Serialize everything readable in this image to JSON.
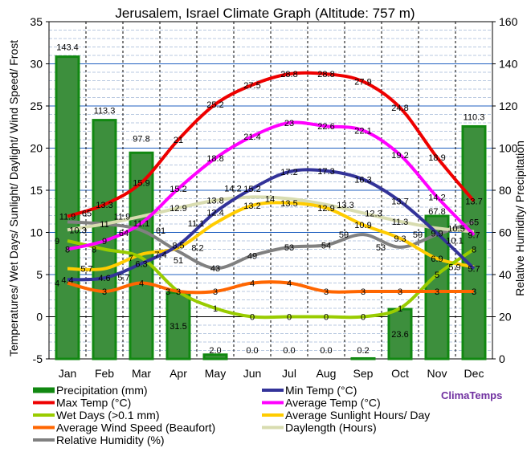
{
  "chart_data": {
    "type": "bar+line",
    "title": "Jerusalem, Israel Climate Graph (Altitude: 757 m)",
    "ylabel_left": "Temperatures/ Wet Days/ Sunlight/ Daylight/ Wind Speed/ Frost",
    "ylabel_right": "Relative Humidity/ Precipitation",
    "ylim_left": [
      -5,
      35
    ],
    "ylim_right": [
      0,
      160
    ],
    "yticks_left": [
      "-5",
      "0",
      "5",
      "10",
      "15",
      "20",
      "25",
      "30",
      "35"
    ],
    "yticks_right": [
      "0",
      "20",
      "40",
      "60",
      "80",
      "100",
      "120",
      "140",
      "160"
    ],
    "grid": true,
    "legend_placement": "bottom",
    "categories": [
      "Jan",
      "Feb",
      "Mar",
      "Apr",
      "May",
      "Jun",
      "Jul",
      "Aug",
      "Sep",
      "Oct",
      "Nov",
      "Dec"
    ],
    "bars": {
      "name": "Precipitation (mm)",
      "axis": "right",
      "color": "#3d8f3d",
      "values": [
        143.4,
        113.3,
        97.8,
        31.5,
        2.0,
        0.0,
        0.0,
        0.0,
        0.2,
        23.6,
        67.8,
        110.3
      ]
    },
    "series": [
      {
        "name": "Max Temp (°C)",
        "axis": "left",
        "color": "#ee0000",
        "values": [
          11.9,
          13.3,
          15.9,
          21,
          25.2,
          27.5,
          28.8,
          28.8,
          27.9,
          24.8,
          18.9,
          13.7
        ]
      },
      {
        "name": "Min Temp (°C)",
        "axis": "left",
        "color": "#333399",
        "values": [
          4.4,
          4.6,
          6.3,
          8.5,
          12.4,
          15.2,
          17.2,
          17.3,
          16.3,
          13.7,
          9.9,
          5.7
        ]
      },
      {
        "name": "Average Temp (°C)",
        "axis": "left",
        "color": "#ff00ff",
        "values": [
          8,
          9,
          11.1,
          15.2,
          18.8,
          21.4,
          23.0,
          22.6,
          22.1,
          19.2,
          14.2,
          9.7
        ]
      },
      {
        "name": "Wet Days (>0.1 mm)",
        "axis": "left",
        "color": "#99cc00",
        "values": [
          9,
          8,
          7,
          3,
          1,
          0,
          0,
          0,
          0,
          1,
          5,
          8
        ]
      },
      {
        "name": "Average Sunlight Hours/ Day",
        "axis": "left",
        "color": "#ffcc00",
        "values": [
          5.7,
          5.7,
          7.4,
          8.2,
          11.1,
          13.2,
          13.5,
          12.9,
          10.9,
          9.3,
          6.9,
          5.9
        ]
      },
      {
        "name": "Average Wind Speed (Beaufort)",
        "axis": "left",
        "color": "#ff6600",
        "values": [
          4,
          3,
          4,
          3,
          3,
          4,
          4,
          3,
          3,
          3,
          3,
          3
        ]
      },
      {
        "name": "Daylength (Hours)",
        "axis": "left",
        "color": "#d8dcb0",
        "values": [
          10.3,
          11.0,
          11.9,
          12.9,
          13.8,
          14.2,
          14.0,
          13.3,
          12.3,
          11.3,
          10.5,
          10.1
        ]
      },
      {
        "name": "Relative Humidity (%)",
        "axis": "right",
        "color": "#808080",
        "values": [
          65,
          64,
          61,
          51,
          43,
          49,
          53,
          54,
          59,
          53,
          59,
          65
        ]
      }
    ]
  },
  "brand": "ClimaTemps"
}
